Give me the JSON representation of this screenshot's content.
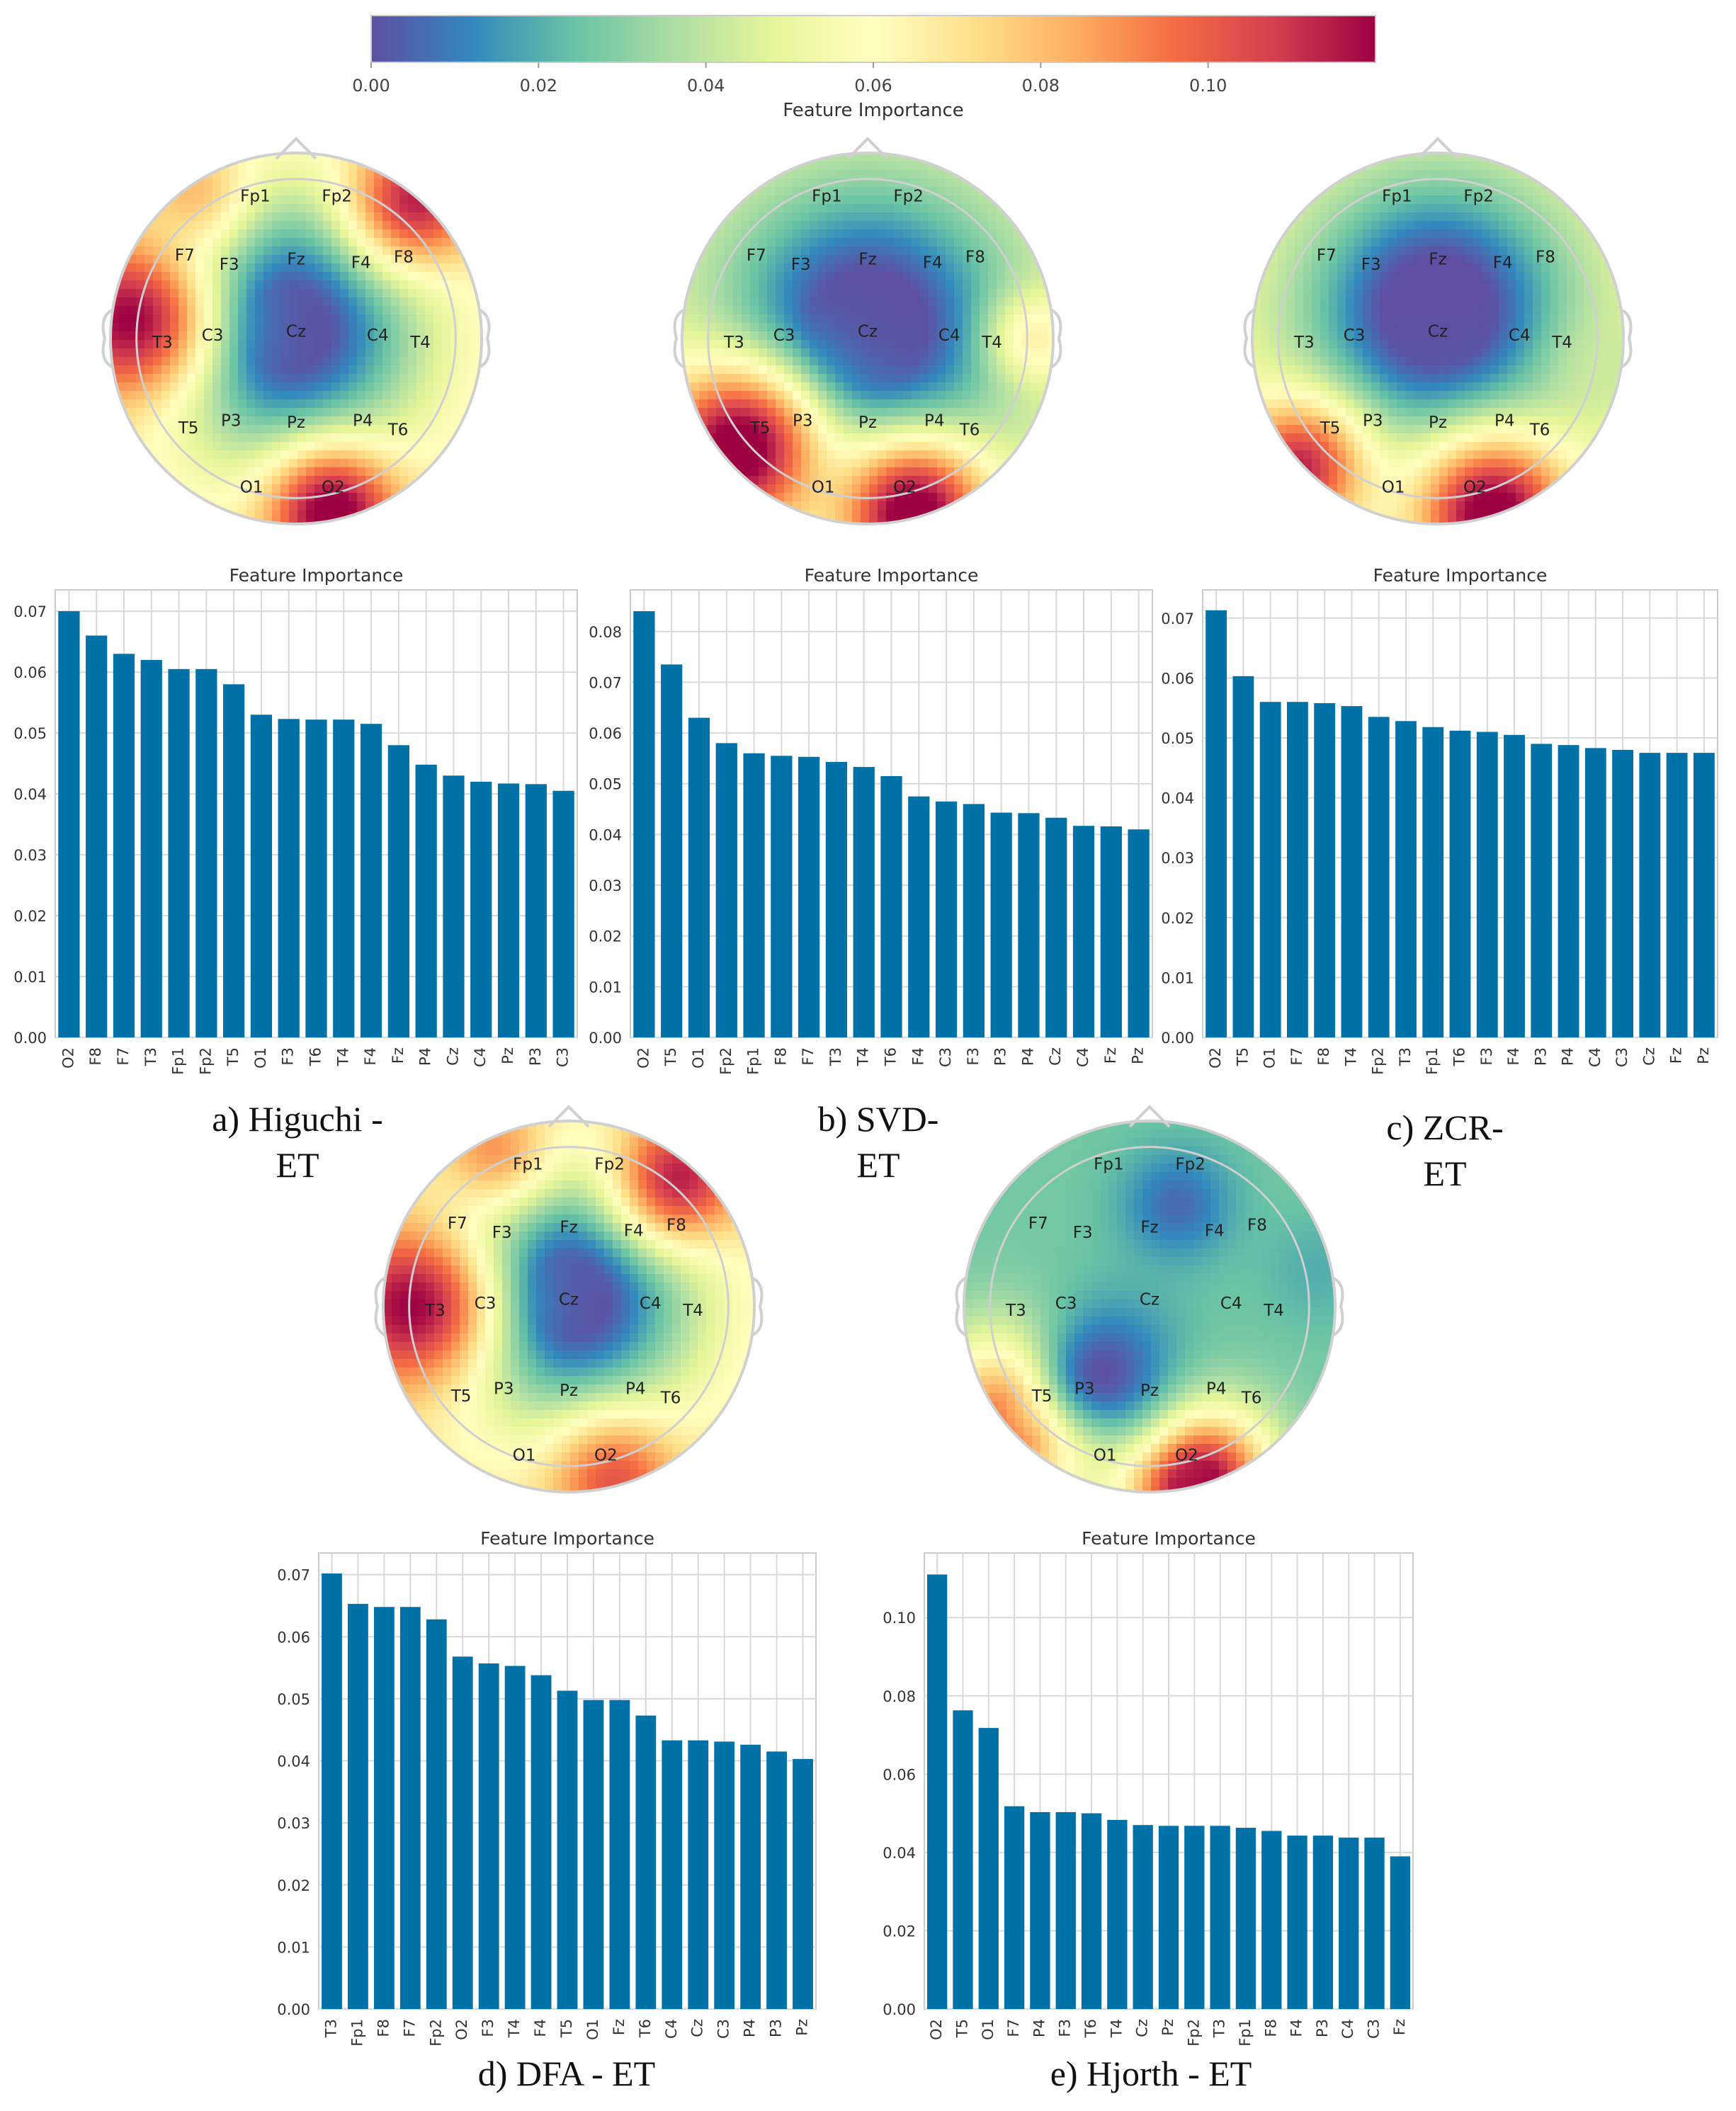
{
  "colorbar": {
    "label": "Feature Importance",
    "ticks": [
      "0.00",
      "0.02",
      "0.04",
      "0.06",
      "0.08",
      "0.10"
    ],
    "range": [
      0,
      0.12
    ],
    "colors": [
      "#5e4fa2",
      "#3288bd",
      "#66c2a5",
      "#abdda4",
      "#e6f598",
      "#ffffbf",
      "#fee08b",
      "#fdae61",
      "#f46d43",
      "#d53e4f",
      "#9e0142"
    ]
  },
  "panels": [
    {
      "caption": [
        "a) Higuchi -",
        "ET"
      ],
      "topomap": {
        "electrodes": [
          "Fp1",
          "Fp2",
          "F7",
          "F3",
          "Fz",
          "F4",
          "F8",
          "T3",
          "C3",
          "Cz",
          "C4",
          "T4",
          "T5",
          "P3",
          "Pz",
          "P4",
          "T6",
          "O1",
          "O2"
        ]
      },
      "chart_data": {
        "type": "bar",
        "title": "Feature Importance",
        "categories": [
          "O2",
          "F8",
          "F7",
          "T3",
          "Fp1",
          "Fp2",
          "T5",
          "O1",
          "F3",
          "T6",
          "T4",
          "F4",
          "Fz",
          "P4",
          "Cz",
          "C4",
          "Pz",
          "P3",
          "C3"
        ],
        "values": [
          0.07,
          0.066,
          0.063,
          0.062,
          0.0605,
          0.0605,
          0.058,
          0.053,
          0.0523,
          0.0522,
          0.0522,
          0.0515,
          0.048,
          0.0448,
          0.043,
          0.042,
          0.0417,
          0.0416,
          0.0405
        ],
        "yticks": [
          "0.00",
          "0.01",
          "0.02",
          "0.03",
          "0.04",
          "0.05",
          "0.06",
          "0.07"
        ],
        "ylim": [
          0,
          0.0735
        ],
        "grid": true
      }
    },
    {
      "caption": [
        "b) SVD-",
        "ET"
      ],
      "topomap": {
        "electrodes": [
          "Fp1",
          "Fp2",
          "F7",
          "F3",
          "Fz",
          "F4",
          "F8",
          "T3",
          "C3",
          "Cz",
          "C4",
          "T4",
          "T5",
          "P3",
          "Pz",
          "P4",
          "T6",
          "O1",
          "O2"
        ]
      },
      "chart_data": {
        "type": "bar",
        "title": "Feature Importance",
        "categories": [
          "O2",
          "T5",
          "O1",
          "Fp2",
          "Fp1",
          "F8",
          "F7",
          "T3",
          "T4",
          "T6",
          "F4",
          "C3",
          "F3",
          "P3",
          "P4",
          "Cz",
          "C4",
          "Fz",
          "Pz"
        ],
        "values": [
          0.084,
          0.0735,
          0.063,
          0.058,
          0.056,
          0.0555,
          0.0553,
          0.0543,
          0.0533,
          0.0515,
          0.0475,
          0.0465,
          0.046,
          0.0443,
          0.0442,
          0.0433,
          0.0417,
          0.0416,
          0.041
        ],
        "yticks": [
          "0.00",
          "0.01",
          "0.02",
          "0.03",
          "0.04",
          "0.05",
          "0.06",
          "0.07",
          "0.08"
        ],
        "ylim": [
          0,
          0.0882
        ],
        "grid": true
      }
    },
    {
      "caption": [
        "c) ZCR-",
        "ET"
      ],
      "topomap": {
        "electrodes": [
          "Fp1",
          "Fp2",
          "F7",
          "F3",
          "Fz",
          "F4",
          "F8",
          "T3",
          "C3",
          "Cz",
          "C4",
          "T4",
          "T5",
          "P3",
          "Pz",
          "P4",
          "T6",
          "O1",
          "O2"
        ]
      },
      "chart_data": {
        "type": "bar",
        "title": "Feature Importance",
        "categories": [
          "O2",
          "T5",
          "O1",
          "F7",
          "F8",
          "T4",
          "Fp2",
          "T3",
          "Fp1",
          "T6",
          "F3",
          "F4",
          "P3",
          "P4",
          "C4",
          "C3",
          "Cz",
          "Fz",
          "Pz"
        ],
        "values": [
          0.0713,
          0.0603,
          0.056,
          0.056,
          0.0558,
          0.0553,
          0.0535,
          0.0528,
          0.0518,
          0.0512,
          0.051,
          0.0505,
          0.049,
          0.0488,
          0.0483,
          0.048,
          0.0475,
          0.0475,
          0.0475
        ],
        "yticks": [
          "0.00",
          "0.01",
          "0.02",
          "0.03",
          "0.04",
          "0.05",
          "0.06",
          "0.07"
        ],
        "ylim": [
          0,
          0.0747
        ],
        "grid": true
      }
    },
    {
      "caption": [
        "d) DFA - ET"
      ],
      "topomap": {
        "electrodes": [
          "Fp1",
          "Fp2",
          "F7",
          "F3",
          "Fz",
          "F4",
          "F8",
          "T3",
          "C3",
          "Cz",
          "C4",
          "T4",
          "T5",
          "P3",
          "Pz",
          "P4",
          "T6",
          "O1",
          "O2"
        ]
      },
      "chart_data": {
        "type": "bar",
        "title": "Feature Importance",
        "categories": [
          "T3",
          "Fp1",
          "F8",
          "F7",
          "Fp2",
          "O2",
          "F3",
          "T4",
          "F4",
          "T5",
          "O1",
          "Fz",
          "T6",
          "C4",
          "Cz",
          "C3",
          "P4",
          "P3",
          "Pz"
        ],
        "values": [
          0.0702,
          0.0653,
          0.0648,
          0.0648,
          0.0628,
          0.0568,
          0.0557,
          0.0553,
          0.0538,
          0.0513,
          0.0498,
          0.0498,
          0.0473,
          0.0433,
          0.0433,
          0.0431,
          0.0426,
          0.0415,
          0.0403
        ],
        "yticks": [
          "0.00",
          "0.01",
          "0.02",
          "0.03",
          "0.04",
          "0.05",
          "0.06",
          "0.07"
        ],
        "ylim": [
          0,
          0.0735
        ],
        "grid": true
      }
    },
    {
      "caption": [
        "e) Hjorth - ET"
      ],
      "topomap": {
        "electrodes": [
          "Fp1",
          "Fp2",
          "F7",
          "F3",
          "Fz",
          "F4",
          "F8",
          "T3",
          "C3",
          "Cz",
          "C4",
          "T4",
          "T5",
          "P3",
          "Pz",
          "P4",
          "T6",
          "O1",
          "O2"
        ]
      },
      "chart_data": {
        "type": "bar",
        "title": "Feature Importance",
        "categories": [
          "O2",
          "T5",
          "O1",
          "F7",
          "P4",
          "F3",
          "T6",
          "T4",
          "Cz",
          "Pz",
          "Fp2",
          "T3",
          "Fp1",
          "F8",
          "F4",
          "P3",
          "C4",
          "C3",
          "Fz"
        ],
        "values": [
          0.111,
          0.0763,
          0.0718,
          0.0518,
          0.0503,
          0.0503,
          0.05,
          0.0483,
          0.047,
          0.0468,
          0.0468,
          0.0468,
          0.0463,
          0.0455,
          0.0443,
          0.0443,
          0.0438,
          0.0438,
          0.039
        ],
        "yticks": [
          "0.00",
          "0.02",
          "0.04",
          "0.06",
          "0.08",
          "0.10"
        ],
        "ylim": [
          0,
          0.1165
        ],
        "grid": true
      }
    }
  ]
}
